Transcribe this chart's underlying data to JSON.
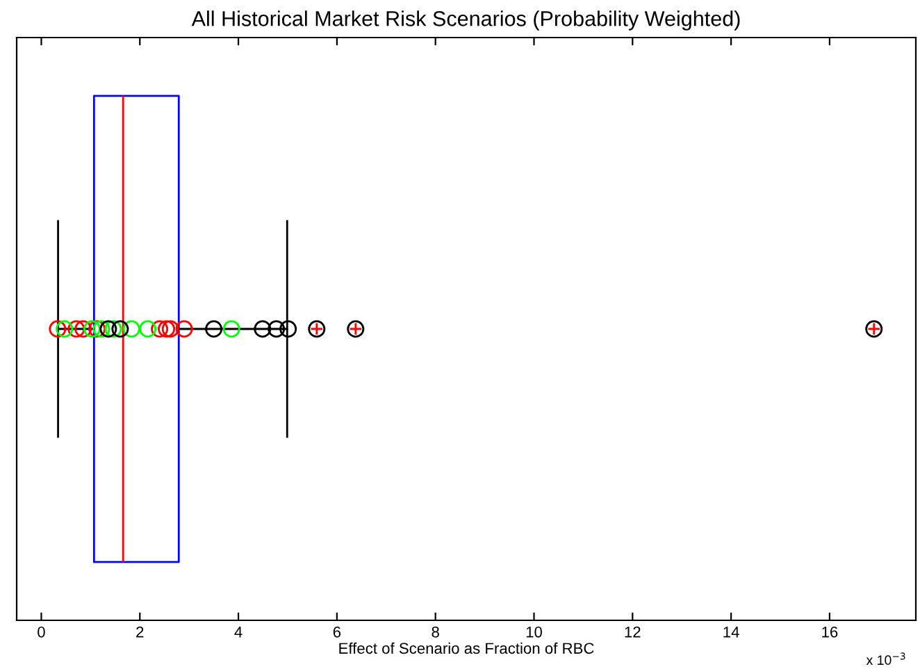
{
  "chart_data": {
    "type": "box",
    "orientation": "horizontal",
    "title": "All Historical Market Risk Scenarios (Probability Weighted)",
    "xlabel": "Effect of Scenario as Fraction of RBC",
    "annotations": [
      "x 10$^{−3}$"
    ],
    "categories": [
      null
    ],
    "xlim": [
      -0.5,
      17.75
    ],
    "xticks": [
      0,
      2,
      4,
      6,
      8,
      10,
      12,
      14,
      16
    ],
    "grid": false,
    "legend": false,
    "boxes": [
      {
        "low": 0.34,
        "q1": 1.07,
        "median": 1.66,
        "q3": 2.79,
        "high": 4.99,
        "outliers": [
          5.59,
          6.38,
          16.9
        ]
      }
    ],
    "series": [
      {
        "type": "scatter",
        "marker": "circle",
        "color": "#ff0000",
        "x": [
          null,
          null,
          null,
          null,
          null,
          null,
          null,
          null
        ],
        "values": [
          0.33,
          0.71,
          0.85,
          1.13,
          2.4,
          2.54,
          2.62,
          2.9
        ]
      },
      {
        "type": "scatter",
        "marker": "circle",
        "color": "#00ff00",
        "x": [
          null,
          null,
          null,
          null,
          null,
          null,
          null
        ],
        "values": [
          0.47,
          1.03,
          1.22,
          1.46,
          1.83,
          2.16,
          3.86
        ]
      },
      {
        "type": "scatter",
        "marker": "circle",
        "color": "#000000",
        "x": [
          null,
          null,
          null,
          null,
          null,
          null
        ],
        "values": [
          1.36,
          1.6,
          3.5,
          4.49,
          4.77,
          5.01
        ]
      }
    ]
  }
}
